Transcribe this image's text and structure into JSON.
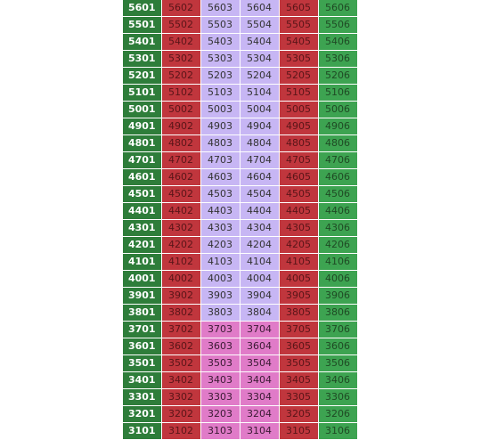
{
  "colors": {
    "floor_label": "#2e7d3a",
    "red": "#c0363d",
    "lavender": "#c7b6f4",
    "pink": "#e07bc8",
    "green": "#3da351"
  },
  "status_text_colors": {
    "red": "#5a1518",
    "lavender": "#333333",
    "pink": "#3a1a33",
    "green": "#1f4a24"
  },
  "rows": [
    {
      "floor": "5601",
      "units": [
        {
          "no": "5602",
          "status": "red"
        },
        {
          "no": "5603",
          "status": "lavender"
        },
        {
          "no": "5604",
          "status": "lavender"
        },
        {
          "no": "5605",
          "status": "red"
        },
        {
          "no": "5606",
          "status": "green"
        }
      ]
    },
    {
      "floor": "5501",
      "units": [
        {
          "no": "5502",
          "status": "red"
        },
        {
          "no": "5503",
          "status": "lavender"
        },
        {
          "no": "5504",
          "status": "lavender"
        },
        {
          "no": "5505",
          "status": "red"
        },
        {
          "no": "5506",
          "status": "green"
        }
      ]
    },
    {
      "floor": "5401",
      "units": [
        {
          "no": "5402",
          "status": "red"
        },
        {
          "no": "5403",
          "status": "lavender"
        },
        {
          "no": "5404",
          "status": "lavender"
        },
        {
          "no": "5405",
          "status": "red"
        },
        {
          "no": "5406",
          "status": "green"
        }
      ]
    },
    {
      "floor": "5301",
      "units": [
        {
          "no": "5302",
          "status": "red"
        },
        {
          "no": "5303",
          "status": "lavender"
        },
        {
          "no": "5304",
          "status": "lavender"
        },
        {
          "no": "5305",
          "status": "red"
        },
        {
          "no": "5306",
          "status": "green"
        }
      ]
    },
    {
      "floor": "5201",
      "units": [
        {
          "no": "5202",
          "status": "red"
        },
        {
          "no": "5203",
          "status": "lavender"
        },
        {
          "no": "5204",
          "status": "lavender"
        },
        {
          "no": "5205",
          "status": "red"
        },
        {
          "no": "5206",
          "status": "green"
        }
      ]
    },
    {
      "floor": "5101",
      "units": [
        {
          "no": "5102",
          "status": "red"
        },
        {
          "no": "5103",
          "status": "lavender"
        },
        {
          "no": "5104",
          "status": "lavender"
        },
        {
          "no": "5105",
          "status": "red"
        },
        {
          "no": "5106",
          "status": "green"
        }
      ]
    },
    {
      "floor": "5001",
      "units": [
        {
          "no": "5002",
          "status": "red"
        },
        {
          "no": "5003",
          "status": "lavender"
        },
        {
          "no": "5004",
          "status": "lavender"
        },
        {
          "no": "5005",
          "status": "red"
        },
        {
          "no": "5006",
          "status": "green"
        }
      ]
    },
    {
      "floor": "4901",
      "units": [
        {
          "no": "4902",
          "status": "red"
        },
        {
          "no": "4903",
          "status": "lavender"
        },
        {
          "no": "4904",
          "status": "lavender"
        },
        {
          "no": "4905",
          "status": "red"
        },
        {
          "no": "4906",
          "status": "green"
        }
      ]
    },
    {
      "floor": "4801",
      "units": [
        {
          "no": "4802",
          "status": "red"
        },
        {
          "no": "4803",
          "status": "lavender"
        },
        {
          "no": "4804",
          "status": "lavender"
        },
        {
          "no": "4805",
          "status": "red"
        },
        {
          "no": "4806",
          "status": "green"
        }
      ]
    },
    {
      "floor": "4701",
      "units": [
        {
          "no": "4702",
          "status": "red"
        },
        {
          "no": "4703",
          "status": "lavender"
        },
        {
          "no": "4704",
          "status": "lavender"
        },
        {
          "no": "4705",
          "status": "red"
        },
        {
          "no": "4706",
          "status": "green"
        }
      ]
    },
    {
      "floor": "4601",
      "units": [
        {
          "no": "4602",
          "status": "red"
        },
        {
          "no": "4603",
          "status": "lavender"
        },
        {
          "no": "4604",
          "status": "lavender"
        },
        {
          "no": "4605",
          "status": "red"
        },
        {
          "no": "4606",
          "status": "green"
        }
      ]
    },
    {
      "floor": "4501",
      "units": [
        {
          "no": "4502",
          "status": "red"
        },
        {
          "no": "4503",
          "status": "lavender"
        },
        {
          "no": "4504",
          "status": "lavender"
        },
        {
          "no": "4505",
          "status": "red"
        },
        {
          "no": "4506",
          "status": "green"
        }
      ]
    },
    {
      "floor": "4401",
      "units": [
        {
          "no": "4402",
          "status": "red"
        },
        {
          "no": "4403",
          "status": "lavender"
        },
        {
          "no": "4404",
          "status": "lavender"
        },
        {
          "no": "4405",
          "status": "red"
        },
        {
          "no": "4406",
          "status": "green"
        }
      ]
    },
    {
      "floor": "4301",
      "units": [
        {
          "no": "4302",
          "status": "red"
        },
        {
          "no": "4303",
          "status": "lavender"
        },
        {
          "no": "4304",
          "status": "lavender"
        },
        {
          "no": "4305",
          "status": "red"
        },
        {
          "no": "4306",
          "status": "green"
        }
      ]
    },
    {
      "floor": "4201",
      "units": [
        {
          "no": "4202",
          "status": "red"
        },
        {
          "no": "4203",
          "status": "lavender"
        },
        {
          "no": "4204",
          "status": "lavender"
        },
        {
          "no": "4205",
          "status": "red"
        },
        {
          "no": "4206",
          "status": "green"
        }
      ]
    },
    {
      "floor": "4101",
      "units": [
        {
          "no": "4102",
          "status": "red"
        },
        {
          "no": "4103",
          "status": "lavender"
        },
        {
          "no": "4104",
          "status": "lavender"
        },
        {
          "no": "4105",
          "status": "red"
        },
        {
          "no": "4106",
          "status": "green"
        }
      ]
    },
    {
      "floor": "4001",
      "units": [
        {
          "no": "4002",
          "status": "red"
        },
        {
          "no": "4003",
          "status": "lavender"
        },
        {
          "no": "4004",
          "status": "lavender"
        },
        {
          "no": "4005",
          "status": "red"
        },
        {
          "no": "4006",
          "status": "green"
        }
      ]
    },
    {
      "floor": "3901",
      "units": [
        {
          "no": "3902",
          "status": "red"
        },
        {
          "no": "3903",
          "status": "lavender"
        },
        {
          "no": "3904",
          "status": "lavender"
        },
        {
          "no": "3905",
          "status": "red"
        },
        {
          "no": "3906",
          "status": "green"
        }
      ]
    },
    {
      "floor": "3801",
      "units": [
        {
          "no": "3802",
          "status": "red"
        },
        {
          "no": "3803",
          "status": "lavender"
        },
        {
          "no": "3804",
          "status": "lavender"
        },
        {
          "no": "3805",
          "status": "red"
        },
        {
          "no": "3806",
          "status": "green"
        }
      ]
    },
    {
      "floor": "3701",
      "units": [
        {
          "no": "3702",
          "status": "red"
        },
        {
          "no": "3703",
          "status": "pink"
        },
        {
          "no": "3704",
          "status": "pink"
        },
        {
          "no": "3705",
          "status": "red"
        },
        {
          "no": "3706",
          "status": "green"
        }
      ]
    },
    {
      "floor": "3601",
      "units": [
        {
          "no": "3602",
          "status": "red"
        },
        {
          "no": "3603",
          "status": "pink"
        },
        {
          "no": "3604",
          "status": "pink"
        },
        {
          "no": "3605",
          "status": "red"
        },
        {
          "no": "3606",
          "status": "green"
        }
      ]
    },
    {
      "floor": "3501",
      "units": [
        {
          "no": "3502",
          "status": "red"
        },
        {
          "no": "3503",
          "status": "pink"
        },
        {
          "no": "3504",
          "status": "pink"
        },
        {
          "no": "3505",
          "status": "red"
        },
        {
          "no": "3506",
          "status": "green"
        }
      ]
    },
    {
      "floor": "3401",
      "units": [
        {
          "no": "3402",
          "status": "red"
        },
        {
          "no": "3403",
          "status": "pink"
        },
        {
          "no": "3404",
          "status": "pink"
        },
        {
          "no": "3405",
          "status": "red"
        },
        {
          "no": "3406",
          "status": "green"
        }
      ]
    },
    {
      "floor": "3301",
      "units": [
        {
          "no": "3302",
          "status": "red"
        },
        {
          "no": "3303",
          "status": "pink"
        },
        {
          "no": "3304",
          "status": "pink"
        },
        {
          "no": "3305",
          "status": "red"
        },
        {
          "no": "3306",
          "status": "green"
        }
      ]
    },
    {
      "floor": "3201",
      "units": [
        {
          "no": "3202",
          "status": "red"
        },
        {
          "no": "3203",
          "status": "pink"
        },
        {
          "no": "3204",
          "status": "pink"
        },
        {
          "no": "3205",
          "status": "red"
        },
        {
          "no": "3206",
          "status": "green"
        }
      ]
    },
    {
      "floor": "3101",
      "units": [
        {
          "no": "3102",
          "status": "red"
        },
        {
          "no": "3103",
          "status": "pink"
        },
        {
          "no": "3104",
          "status": "pink"
        },
        {
          "no": "3105",
          "status": "red"
        },
        {
          "no": "3106",
          "status": "green"
        }
      ]
    }
  ]
}
